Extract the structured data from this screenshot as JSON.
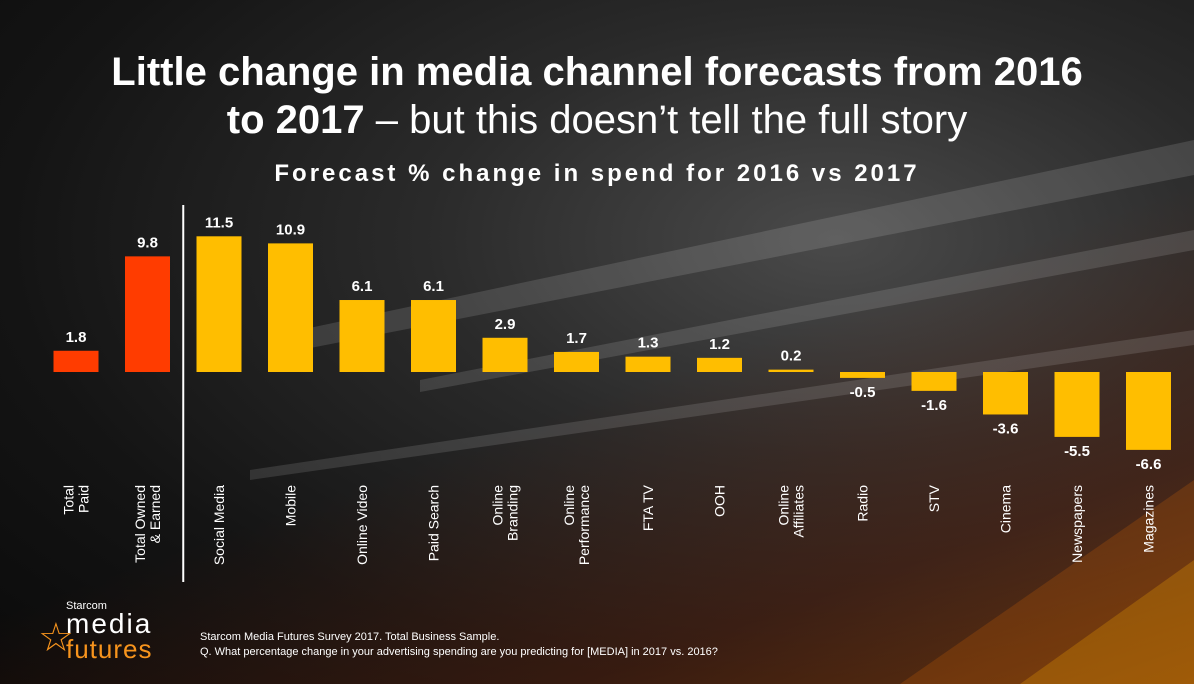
{
  "header": {
    "title_bold_1": "Little change in media channel forecasts from 2016",
    "title_bold_2": "to 2017",
    "title_light": " – but this doesn’t tell the full story"
  },
  "chart_data": {
    "type": "bar",
    "title": "Forecast % change in spend for 2016 vs 2017",
    "categories": [
      [
        "Total",
        "Paid"
      ],
      [
        "Total Owned",
        "& Earned"
      ],
      [
        "Social Media"
      ],
      [
        "Mobile"
      ],
      [
        "Online Video"
      ],
      [
        "Paid Search"
      ],
      [
        "Online",
        "Branding"
      ],
      [
        "Online",
        "Performance"
      ],
      [
        "FTA TV"
      ],
      [
        "OOH"
      ],
      [
        "Online",
        "Affiliates"
      ],
      [
        "Radio"
      ],
      [
        "STV"
      ],
      [
        "Cinema"
      ],
      [
        "Newspapers"
      ],
      [
        "Magazines"
      ]
    ],
    "values": [
      1.8,
      9.8,
      11.5,
      10.9,
      6.1,
      6.1,
      2.9,
      1.7,
      1.3,
      1.2,
      0.2,
      -0.5,
      -1.6,
      -3.6,
      -5.5,
      -6.6
    ],
    "value_labels": [
      "1.8",
      "9.8",
      "11.5",
      "10.9",
      "6.1",
      "6.1",
      "2.9",
      "1.7",
      "1.3",
      "1.2",
      "0.2",
      "-0.5",
      "-1.6",
      "-3.6",
      "-5.5",
      "-6.6"
    ],
    "colors": [
      "#ff3c00",
      "#ff3c00",
      "#ffbe00",
      "#ffbe00",
      "#ffbe00",
      "#ffbe00",
      "#ffbe00",
      "#ffbe00",
      "#ffbe00",
      "#ffbe00",
      "#ffbe00",
      "#ffbe00",
      "#ffbe00",
      "#ffbe00",
      "#ffbe00",
      "#ffbe00"
    ],
    "separator_after_index": 1,
    "xlabel": "",
    "ylabel": "",
    "grid": false,
    "legend": "none"
  },
  "logo": {
    "starcom": "Starcom",
    "media": "media",
    "futures": "futures",
    "accent": "#f7941d"
  },
  "source": {
    "line1": "Starcom Media Futures Survey 2017. Total Business Sample.",
    "line2": "Q. What percentage change in your advertising spending are you predicting for [MEDIA] in 2017 vs. 2016?"
  }
}
